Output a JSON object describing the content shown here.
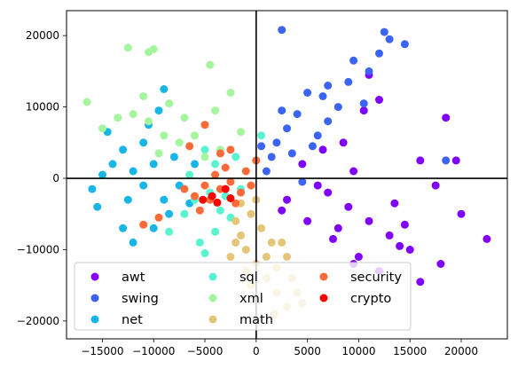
{
  "chart_data": {
    "type": "scatter",
    "title": "",
    "xlabel": "",
    "ylabel": "",
    "xlim": [
      -18500,
      24500
    ],
    "ylim": [
      -22500,
      23500
    ],
    "xticks": [
      -15000,
      -10000,
      -5000,
      0,
      5000,
      10000,
      15000,
      20000
    ],
    "yticks": [
      -20000,
      -10000,
      0,
      10000,
      20000
    ],
    "tick_labels_x": [
      "−15000",
      "−10000",
      "−5000",
      "0",
      "5000",
      "10000",
      "15000",
      "20000"
    ],
    "tick_labels_y": [
      "−20000",
      "−10000",
      "0",
      "10000",
      "20000"
    ],
    "reference_lines": {
      "x": 0,
      "y": 0
    },
    "grid": false,
    "legend": {
      "placement": "lower-left",
      "columns": 3
    },
    "series": [
      {
        "name": "awt",
        "color": "#8000ff",
        "points": [
          [
            7000,
            -2000
          ],
          [
            9000,
            -4000
          ],
          [
            11000,
            -6000
          ],
          [
            13000,
            -8000
          ],
          [
            15000,
            -10000
          ],
          [
            16000,
            -14500
          ],
          [
            18000,
            -12000
          ],
          [
            20000,
            -5000
          ],
          [
            22500,
            -8500
          ],
          [
            18500,
            8500
          ],
          [
            12000,
            11000
          ],
          [
            10500,
            9500
          ],
          [
            8500,
            5000
          ],
          [
            9500,
            1000
          ],
          [
            6000,
            -1000
          ],
          [
            4500,
            2000
          ],
          [
            3000,
            -3000
          ],
          [
            5000,
            -6000
          ],
          [
            7500,
            -8500
          ],
          [
            10000,
            -11000
          ],
          [
            12000,
            -13000
          ],
          [
            14000,
            -9500
          ],
          [
            16000,
            2500
          ],
          [
            17500,
            -1000
          ],
          [
            19500,
            2500
          ],
          [
            11000,
            14500
          ],
          [
            6500,
            4000
          ],
          [
            13500,
            -3500
          ],
          [
            8000,
            -7000
          ],
          [
            9500,
            -12000
          ],
          [
            14500,
            -6500
          ],
          [
            2500,
            -4500
          ]
        ]
      },
      {
        "name": "swing",
        "color": "#3c64f4",
        "points": [
          [
            2500,
            20800
          ],
          [
            12500,
            20500
          ],
          [
            13000,
            19500
          ],
          [
            14500,
            18800
          ],
          [
            12000,
            17500
          ],
          [
            11000,
            15000
          ],
          [
            9500,
            16500
          ],
          [
            5000,
            12000
          ],
          [
            4000,
            9000
          ],
          [
            3000,
            7000
          ],
          [
            2000,
            5000
          ],
          [
            1500,
            3000
          ],
          [
            6000,
            6000
          ],
          [
            7000,
            8000
          ],
          [
            8000,
            10000
          ],
          [
            3500,
            3500
          ],
          [
            5500,
            4500
          ],
          [
            4500,
            -500
          ],
          [
            6500,
            11500
          ],
          [
            10500,
            10500
          ],
          [
            18500,
            2500
          ],
          [
            1000,
            1000
          ],
          [
            2500,
            9500
          ],
          [
            9000,
            13500
          ],
          [
            7000,
            13000
          ],
          [
            500,
            4500
          ]
        ]
      },
      {
        "name": "net",
        "color": "#18b6e6",
        "points": [
          [
            -16000,
            -1500
          ],
          [
            -15500,
            -4000
          ],
          [
            -13000,
            -7000
          ],
          [
            -12000,
            -9000
          ],
          [
            -10000,
            -7000
          ],
          [
            -9000,
            12500
          ],
          [
            -9500,
            9500
          ],
          [
            -11000,
            5000
          ],
          [
            -13000,
            4000
          ],
          [
            -14000,
            2000
          ],
          [
            -12000,
            1000
          ],
          [
            -10000,
            2000
          ],
          [
            -8000,
            3000
          ],
          [
            -6000,
            2000
          ],
          [
            -7500,
            -1000
          ],
          [
            -9000,
            -3000
          ],
          [
            -11000,
            -1000
          ],
          [
            -12500,
            -3000
          ],
          [
            -14500,
            6500
          ],
          [
            -10500,
            7500
          ],
          [
            -8500,
            -5000
          ],
          [
            -6500,
            -3500
          ],
          [
            -15000,
            500
          ]
        ]
      },
      {
        "name": "sql",
        "color": "#5af3cf",
        "points": [
          [
            -4500,
            -2000
          ],
          [
            -6000,
            -3000
          ],
          [
            -3500,
            -4500
          ],
          [
            -7000,
            -5000
          ],
          [
            -8500,
            -7500
          ],
          [
            -5500,
            -9000
          ],
          [
            -4000,
            -7500
          ],
          [
            -2500,
            -5500
          ],
          [
            -3000,
            -2500
          ],
          [
            -4000,
            2000
          ],
          [
            -5000,
            4000
          ],
          [
            -2000,
            3000
          ],
          [
            -1500,
            -1500
          ],
          [
            500,
            6000
          ],
          [
            -6500,
            500
          ],
          [
            -5000,
            -10500
          ]
        ]
      },
      {
        "name": "xml",
        "color": "#a5f59e",
        "points": [
          [
            -16500,
            10700
          ],
          [
            -12500,
            18300
          ],
          [
            -10500,
            17700
          ],
          [
            -10000,
            18100
          ],
          [
            -4500,
            15900
          ],
          [
            -2500,
            12000
          ],
          [
            -15000,
            7000
          ],
          [
            -12000,
            9000
          ],
          [
            -10500,
            8000
          ],
          [
            -9000,
            6000
          ],
          [
            -7500,
            5000
          ],
          [
            -6000,
            6000
          ],
          [
            -5000,
            3000
          ],
          [
            -3500,
            4000
          ],
          [
            -8500,
            10500
          ],
          [
            -11000,
            11500
          ],
          [
            -13500,
            8500
          ],
          [
            -1500,
            6500
          ],
          [
            -7000,
            8500
          ],
          [
            -4000,
            9500
          ],
          [
            -9500,
            3500
          ]
        ]
      },
      {
        "name": "math",
        "color": "#e5c577",
        "points": [
          [
            -2000,
            -6000
          ],
          [
            -1500,
            -8000
          ],
          [
            -1000,
            -10000
          ],
          [
            0,
            -12000
          ],
          [
            1000,
            -14000
          ],
          [
            2000,
            -16000
          ],
          [
            3000,
            -18000
          ],
          [
            -500,
            -5000
          ],
          [
            500,
            -7000
          ],
          [
            1500,
            -9000
          ],
          [
            -2500,
            -11000
          ],
          [
            -1000,
            -13000
          ],
          [
            1000,
            -11000
          ],
          [
            2000,
            -12500
          ],
          [
            3500,
            -14000
          ],
          [
            4000,
            -16000
          ],
          [
            -500,
            -15000
          ],
          [
            0,
            -3000
          ],
          [
            2500,
            -9000
          ],
          [
            -1500,
            -3500
          ],
          [
            1800,
            -19000
          ],
          [
            4500,
            -17500
          ],
          [
            3000,
            -11000
          ],
          [
            -2000,
            -9000
          ]
        ]
      },
      {
        "name": "security",
        "color": "#ff6a37",
        "points": [
          [
            -500,
            -1000
          ],
          [
            -1500,
            -2000
          ],
          [
            -2500,
            -500
          ],
          [
            -3500,
            -1500
          ],
          [
            -4500,
            -3000
          ],
          [
            -2000,
            -3500
          ],
          [
            -1000,
            1000
          ],
          [
            -3000,
            1500
          ],
          [
            -5000,
            -1000
          ],
          [
            -4000,
            500
          ],
          [
            -6000,
            -2500
          ],
          [
            -5500,
            -4500
          ],
          [
            -9500,
            -5500
          ],
          [
            -11000,
            -6500
          ],
          [
            -7000,
            -1500
          ],
          [
            -2500,
            4000
          ],
          [
            -3500,
            3500
          ],
          [
            0,
            2500
          ],
          [
            -6500,
            4500
          ],
          [
            -5000,
            7500
          ]
        ]
      },
      {
        "name": "crypto",
        "color": "#ff0000",
        "points": [
          [
            -4300,
            -2500
          ],
          [
            -3800,
            -3400
          ],
          [
            -3000,
            -1500
          ],
          [
            -5200,
            -3000
          ],
          [
            -2500,
            -2800
          ]
        ]
      }
    ]
  }
}
